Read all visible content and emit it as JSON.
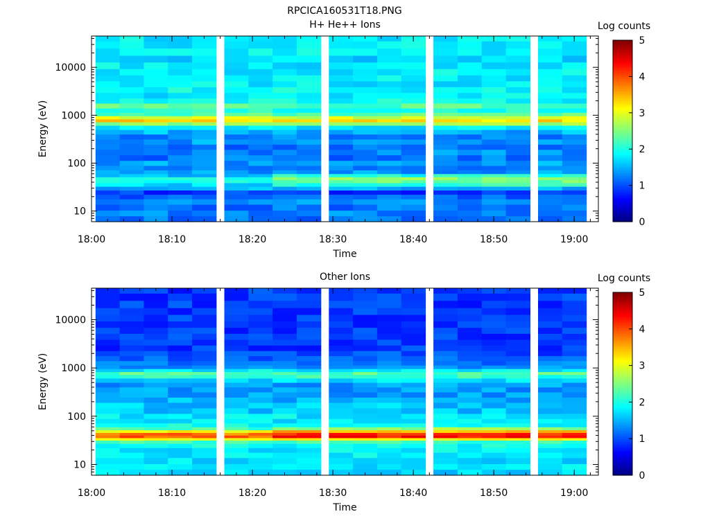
{
  "figure_title": "RPCICA160531T18.PNG",
  "chart_data": [
    {
      "type": "heatmap",
      "title": "H+ He++ Ions",
      "xlabel": "Time",
      "ylabel": "Energy (eV)",
      "x_ticks": [
        "18:00",
        "18:10",
        "18:20",
        "18:30",
        "18:40",
        "18:50",
        "19:00"
      ],
      "xlim": [
        "18:00",
        "19:03"
      ],
      "y_scale": "log",
      "y_ticks": [
        "10",
        "100",
        "1000",
        "10000"
      ],
      "ylim": [
        6,
        45000
      ],
      "colorbar": {
        "label": "Log counts",
        "ticks": [
          "0",
          "1",
          "2",
          "3",
          "4",
          "5"
        ],
        "range": [
          0,
          5
        ],
        "colormap": "jet"
      },
      "time_bins": [
        "18:02",
        "18:05",
        "18:08",
        "18:11",
        "18:14",
        "18:18",
        "18:21",
        "18:24",
        "18:27",
        "18:31",
        "18:34",
        "18:37",
        "18:40",
        "18:44",
        "18:47",
        "18:50",
        "18:53",
        "18:57",
        "19:00"
      ],
      "profile": [
        {
          "energy": 7,
          "log_counts": 1.2
        },
        {
          "energy": 9,
          "log_counts": 1.3
        },
        {
          "energy": 12,
          "log_counts": 1.2
        },
        {
          "energy": 16,
          "log_counts": 1.3
        },
        {
          "energy": 20,
          "log_counts": 1.1
        },
        {
          "energy": 25,
          "log_counts": 0.9
        },
        {
          "energy": 30,
          "log_counts": 1.5
        },
        {
          "energy": 36,
          "log_counts": 1.7
        },
        {
          "energy": 42,
          "log_counts": 2.0
        },
        {
          "energy": 48,
          "log_counts": 2.1
        },
        {
          "energy": 56,
          "log_counts": 1.6
        },
        {
          "energy": 65,
          "log_counts": 1.4
        },
        {
          "energy": 80,
          "log_counts": 1.3
        },
        {
          "energy": 100,
          "log_counts": 1.4
        },
        {
          "energy": 130,
          "log_counts": 1.2
        },
        {
          "energy": 170,
          "log_counts": 1.3
        },
        {
          "energy": 220,
          "log_counts": 1.2
        },
        {
          "energy": 280,
          "log_counts": 1.4
        },
        {
          "energy": 360,
          "log_counts": 1.3
        },
        {
          "energy": 450,
          "log_counts": 1.5
        },
        {
          "energy": 560,
          "log_counts": 1.8
        },
        {
          "energy": 680,
          "log_counts": 2.6
        },
        {
          "energy": 780,
          "log_counts": 3.3
        },
        {
          "energy": 900,
          "log_counts": 2.9
        },
        {
          "energy": 1050,
          "log_counts": 2.3
        },
        {
          "energy": 1250,
          "log_counts": 2.0
        },
        {
          "energy": 1600,
          "log_counts": 2.3
        },
        {
          "energy": 2000,
          "log_counts": 1.9
        },
        {
          "energy": 2600,
          "log_counts": 1.8
        },
        {
          "energy": 3400,
          "log_counts": 1.9
        },
        {
          "energy": 4500,
          "log_counts": 1.8
        },
        {
          "energy": 6000,
          "log_counts": 1.8
        },
        {
          "energy": 8000,
          "log_counts": 1.8
        },
        {
          "energy": 11000,
          "log_counts": 1.8
        },
        {
          "energy": 15000,
          "log_counts": 1.7
        },
        {
          "energy": 21000,
          "log_counts": 1.8
        },
        {
          "energy": 30000,
          "log_counts": 1.8
        },
        {
          "energy": 42000,
          "log_counts": 1.8
        }
      ]
    },
    {
      "type": "heatmap",
      "title": "Other Ions",
      "xlabel": "Time",
      "ylabel": "Energy (eV)",
      "x_ticks": [
        "18:00",
        "18:10",
        "18:20",
        "18:30",
        "18:40",
        "18:50",
        "19:00"
      ],
      "xlim": [
        "18:00",
        "19:03"
      ],
      "y_scale": "log",
      "y_ticks": [
        "10",
        "100",
        "1000",
        "10000"
      ],
      "ylim": [
        6,
        45000
      ],
      "colorbar": {
        "label": "Log counts",
        "ticks": [
          "0",
          "1",
          "2",
          "3",
          "4",
          "5"
        ],
        "range": [
          0,
          5
        ],
        "colormap": "jet"
      },
      "time_bins": [
        "18:02",
        "18:05",
        "18:08",
        "18:11",
        "18:14",
        "18:18",
        "18:21",
        "18:24",
        "18:27",
        "18:31",
        "18:34",
        "18:37",
        "18:40",
        "18:44",
        "18:47",
        "18:50",
        "18:53",
        "18:57",
        "19:00"
      ],
      "profile": [
        {
          "energy": 7,
          "log_counts": 1.7
        },
        {
          "energy": 9,
          "log_counts": 1.8
        },
        {
          "energy": 12,
          "log_counts": 1.7
        },
        {
          "energy": 16,
          "log_counts": 1.8
        },
        {
          "energy": 20,
          "log_counts": 1.8
        },
        {
          "energy": 25,
          "log_counts": 1.9
        },
        {
          "energy": 30,
          "log_counts": 2.2
        },
        {
          "energy": 34,
          "log_counts": 3.2
        },
        {
          "energy": 38,
          "log_counts": 3.9
        },
        {
          "energy": 43,
          "log_counts": 3.8
        },
        {
          "energy": 49,
          "log_counts": 3.1
        },
        {
          "energy": 56,
          "log_counts": 2.2
        },
        {
          "energy": 65,
          "log_counts": 1.9
        },
        {
          "energy": 80,
          "log_counts": 1.8
        },
        {
          "energy": 100,
          "log_counts": 1.8
        },
        {
          "energy": 130,
          "log_counts": 1.6
        },
        {
          "energy": 170,
          "log_counts": 1.6
        },
        {
          "energy": 220,
          "log_counts": 1.5
        },
        {
          "energy": 280,
          "log_counts": 1.4
        },
        {
          "energy": 360,
          "log_counts": 1.4
        },
        {
          "energy": 450,
          "log_counts": 1.4
        },
        {
          "energy": 560,
          "log_counts": 1.7
        },
        {
          "energy": 680,
          "log_counts": 2.1
        },
        {
          "energy": 780,
          "log_counts": 2.3
        },
        {
          "energy": 900,
          "log_counts": 1.8
        },
        {
          "energy": 1050,
          "log_counts": 1.3
        },
        {
          "energy": 1250,
          "log_counts": 1.2
        },
        {
          "energy": 1600,
          "log_counts": 1.1
        },
        {
          "energy": 2000,
          "log_counts": 1.0
        },
        {
          "energy": 2600,
          "log_counts": 0.9
        },
        {
          "energy": 3400,
          "log_counts": 0.9
        },
        {
          "energy": 4500,
          "log_counts": 0.9
        },
        {
          "energy": 6000,
          "log_counts": 0.9
        },
        {
          "energy": 8000,
          "log_counts": 0.9
        },
        {
          "energy": 11000,
          "log_counts": 0.9
        },
        {
          "energy": 15000,
          "log_counts": 0.9
        },
        {
          "energy": 21000,
          "log_counts": 0.9
        },
        {
          "energy": 30000,
          "log_counts": 0.9
        },
        {
          "energy": 42000,
          "log_counts": 0.9
        }
      ]
    }
  ]
}
